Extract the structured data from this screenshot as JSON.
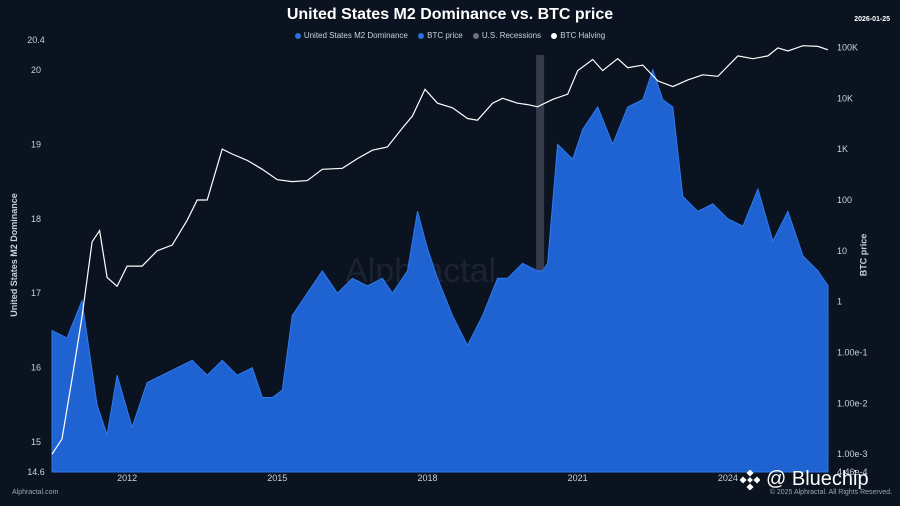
{
  "header": {
    "title": "United States M2 Dominance vs. BTC price",
    "date": "2026-01-25"
  },
  "legend": [
    {
      "label": "United States M2 Dominance",
      "color": "#2a6fdb"
    },
    {
      "label": "BTC price",
      "color": "#2a6fdb"
    },
    {
      "label": "U.S. Recessions",
      "color": "#6b7280"
    },
    {
      "label": "BTC Halving",
      "color": "#ffffff"
    }
  ],
  "axes": {
    "left_label": "United States M2 Dominance",
    "right_label": "BTC price",
    "left_ticks": [
      "14.6",
      "15",
      "16",
      "17",
      "18",
      "19",
      "20",
      "20.4"
    ],
    "right_ticks": [
      "4.46e-4",
      "1.00e-3",
      "1.00e-2",
      "1.00e-1",
      "1",
      "10",
      "100",
      "1K",
      "10K",
      "100K"
    ],
    "x_ticks": [
      "2012",
      "2015",
      "2018",
      "2021",
      "2024"
    ]
  },
  "watermark": "Alphractal",
  "footer": {
    "left": "Alphractal.com",
    "right": "© 2025 Alphractal. All Rights Reserved.",
    "brand": "@ Bluechip"
  },
  "chart_data": {
    "type": "area",
    "title": "United States M2 Dominance vs. BTC price",
    "xlabel": "",
    "x_range": [
      2010.5,
      2026.1
    ],
    "ylim_left": [
      14.6,
      20.4
    ],
    "ylim_right_log": [
      0.000446,
      140000
    ],
    "y_scale_right": "log",
    "series": [
      {
        "name": "United States M2 Dominance",
        "axis": "left",
        "type": "area",
        "color": "#1f62d1",
        "x": [
          2010.5,
          2010.8,
          2011.1,
          2011.4,
          2011.6,
          2011.8,
          2012.1,
          2012.4,
          2012.7,
          2013.0,
          2013.3,
          2013.6,
          2013.9,
          2014.2,
          2014.5,
          2014.7,
          2014.9,
          2015.1,
          2015.3,
          2015.6,
          2015.9,
          2016.2,
          2016.5,
          2016.8,
          2017.1,
          2017.3,
          2017.6,
          2017.8,
          2018.0,
          2018.2,
          2018.5,
          2018.8,
          2019.1,
          2019.4,
          2019.6,
          2019.9,
          2020.2,
          2020.3,
          2020.4,
          2020.6,
          2020.9,
          2021.1,
          2021.4,
          2021.7,
          2022.0,
          2022.3,
          2022.5,
          2022.7,
          2022.9,
          2023.1,
          2023.4,
          2023.7,
          2024.0,
          2024.3,
          2024.6,
          2024.9,
          2025.2,
          2025.5,
          2025.8,
          2026.0
        ],
        "y": [
          16.5,
          16.4,
          16.9,
          15.5,
          15.1,
          15.9,
          15.2,
          15.8,
          15.9,
          16.0,
          16.1,
          15.9,
          16.1,
          15.9,
          16.0,
          15.6,
          15.6,
          15.7,
          16.7,
          17.0,
          17.3,
          17.0,
          17.2,
          17.1,
          17.2,
          17.0,
          17.3,
          18.1,
          17.6,
          17.2,
          16.7,
          16.3,
          16.7,
          17.2,
          17.2,
          17.4,
          17.3,
          17.3,
          17.4,
          19.0,
          18.8,
          19.2,
          19.5,
          19.0,
          19.5,
          19.6,
          20.0,
          19.6,
          19.5,
          18.3,
          18.1,
          18.2,
          18.0,
          17.9,
          18.4,
          17.7,
          18.1,
          17.5,
          17.3,
          17.1
        ]
      },
      {
        "name": "BTC price",
        "axis": "right",
        "type": "line",
        "color": "#ffffff",
        "x": [
          2010.5,
          2010.7,
          2010.9,
          2011.1,
          2011.3,
          2011.45,
          2011.6,
          2011.8,
          2012.0,
          2012.3,
          2012.6,
          2012.9,
          2013.2,
          2013.4,
          2013.6,
          2013.9,
          2014.1,
          2014.4,
          2014.7,
          2015.0,
          2015.3,
          2015.6,
          2015.9,
          2016.3,
          2016.6,
          2016.9,
          2017.2,
          2017.5,
          2017.7,
          2017.95,
          2018.2,
          2018.5,
          2018.8,
          2019.0,
          2019.3,
          2019.5,
          2019.8,
          2020.0,
          2020.2,
          2020.5,
          2020.8,
          2021.0,
          2021.3,
          2021.5,
          2021.8,
          2022.0,
          2022.3,
          2022.6,
          2022.9,
          2023.2,
          2023.5,
          2023.8,
          2024.0,
          2024.2,
          2024.5,
          2024.8,
          2025.0,
          2025.2,
          2025.5,
          2025.8,
          2026.0
        ],
        "y": [
          0.001,
          0.002,
          0.03,
          0.5,
          15,
          25,
          3,
          2,
          5,
          5,
          10,
          13,
          40,
          100,
          100,
          1000,
          800,
          600,
          400,
          250,
          230,
          240,
          400,
          420,
          650,
          950,
          1100,
          2600,
          4500,
          15000,
          8000,
          6500,
          4000,
          3700,
          8000,
          10000,
          8000,
          7500,
          6800,
          9500,
          12000,
          35000,
          58000,
          35000,
          60000,
          40000,
          45000,
          22000,
          17000,
          23000,
          29000,
          27000,
          43000,
          68000,
          60000,
          68000,
          98000,
          85000,
          108000,
          105000,
          90000
        ]
      }
    ],
    "recessions": [
      [
        2020.17,
        2020.33
      ]
    ],
    "halvings": [
      2012.9,
      2016.5,
      2020.4,
      2024.3
    ],
    "grid": false,
    "legend_position": "top"
  }
}
